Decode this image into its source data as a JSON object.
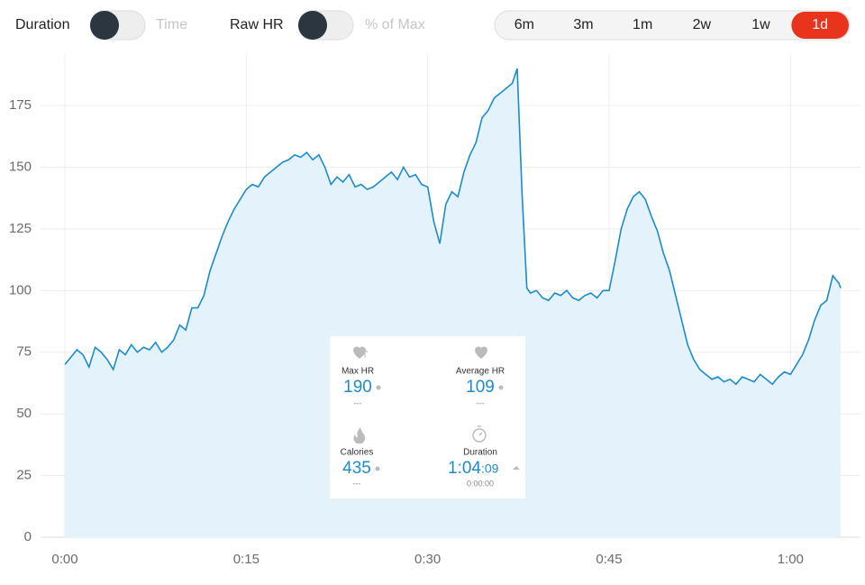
{
  "controls": {
    "toggle1": {
      "on_label": "Duration",
      "off_label": "Time"
    },
    "toggle2": {
      "on_label": "Raw HR",
      "off_label": "% of Max"
    },
    "ranges": [
      "6m",
      "3m",
      "1m",
      "2w",
      "1w",
      "1d"
    ],
    "active_range": "1d"
  },
  "stats": {
    "max_hr": {
      "label": "Max HR",
      "value": "190",
      "compare": "---"
    },
    "avg_hr": {
      "label": "Average HR",
      "value": "109",
      "compare": "---"
    },
    "calories": {
      "label": "Calories",
      "value": "435",
      "compare": "---"
    },
    "duration": {
      "label": "Duration",
      "value_main": "1:04",
      "value_sub": ":09",
      "compare": "0:00:00"
    }
  },
  "chart_data": {
    "type": "area",
    "grid": true,
    "x": [
      0,
      0.5,
      1,
      1.5,
      2,
      2.5,
      3,
      3.5,
      4,
      4.5,
      5,
      5.5,
      6,
      6.5,
      7,
      7.5,
      8,
      8.5,
      9,
      9.5,
      10,
      10.5,
      11,
      11.5,
      12,
      12.5,
      13,
      13.5,
      14,
      14.5,
      15,
      15.5,
      16,
      16.5,
      17,
      17.5,
      18,
      18.5,
      19,
      19.5,
      20,
      20.5,
      21,
      21.5,
      22,
      22.5,
      23,
      23.5,
      24,
      24.5,
      25,
      25.5,
      26,
      26.5,
      27,
      27.5,
      28,
      28.5,
      29,
      29.5,
      30,
      30.5,
      31,
      31.5,
      32,
      32.5,
      33,
      33.5,
      34,
      34.5,
      35,
      35.5,
      36,
      36.5,
      37,
      37.4,
      37.8,
      38.2,
      38.5,
      39,
      39.5,
      40,
      40.5,
      41,
      41.5,
      42,
      42.5,
      43,
      43.5,
      44,
      44.5,
      45,
      45.5,
      46,
      46.5,
      47,
      47.5,
      48,
      48.5,
      49,
      49.5,
      50,
      50.5,
      51,
      51.5,
      52,
      52.5,
      53,
      53.5,
      54,
      54.5,
      55,
      55.5,
      56,
      56.5,
      57,
      57.5,
      58,
      58.5,
      59,
      59.5,
      60,
      60.5,
      61,
      61.5,
      62,
      62.5,
      63,
      63.5,
      64,
      64.15
    ],
    "series": [
      {
        "name": "HR",
        "color": "#1b8ccb",
        "fill": "#e4f2fc",
        "values": [
          70,
          73,
          76,
          74,
          69,
          77,
          75,
          72,
          68,
          76,
          74,
          78,
          75,
          77,
          76,
          79,
          75,
          77,
          80,
          86,
          84,
          93,
          93,
          98,
          108,
          115,
          122,
          128,
          133,
          137,
          141,
          143,
          142,
          146,
          148,
          150,
          152,
          153,
          155,
          154,
          156,
          153,
          155,
          150,
          143,
          146,
          144,
          147,
          142,
          143,
          141,
          142,
          144,
          146,
          148,
          145,
          150,
          146,
          147,
          143,
          142,
          128,
          119,
          135,
          140,
          138,
          148,
          155,
          160,
          170,
          173,
          178,
          180,
          182,
          184,
          190,
          140,
          101,
          99,
          100,
          97,
          96,
          99,
          98,
          100,
          97,
          96,
          98,
          99,
          97,
          100,
          100,
          112,
          125,
          133,
          138,
          140,
          137,
          130,
          124,
          115,
          108,
          98,
          88,
          78,
          72,
          68,
          66,
          64,
          65,
          63,
          64,
          62,
          65,
          64,
          63,
          66,
          64,
          62,
          65,
          67,
          66,
          70,
          74,
          80,
          88,
          94,
          96,
          106,
          103,
          101
        ]
      }
    ],
    "xlim": [
      0,
      64.15
    ],
    "ylim": [
      0,
      190
    ],
    "xticks": [
      {
        "value": 0,
        "label": "0:00"
      },
      {
        "value": 15,
        "label": "0:15"
      },
      {
        "value": 30,
        "label": "0:30"
      },
      {
        "value": 45,
        "label": "0:45"
      },
      {
        "value": 60,
        "label": "1:00"
      }
    ],
    "yticks": [
      0,
      25,
      50,
      75,
      100,
      125,
      150,
      175
    ]
  }
}
